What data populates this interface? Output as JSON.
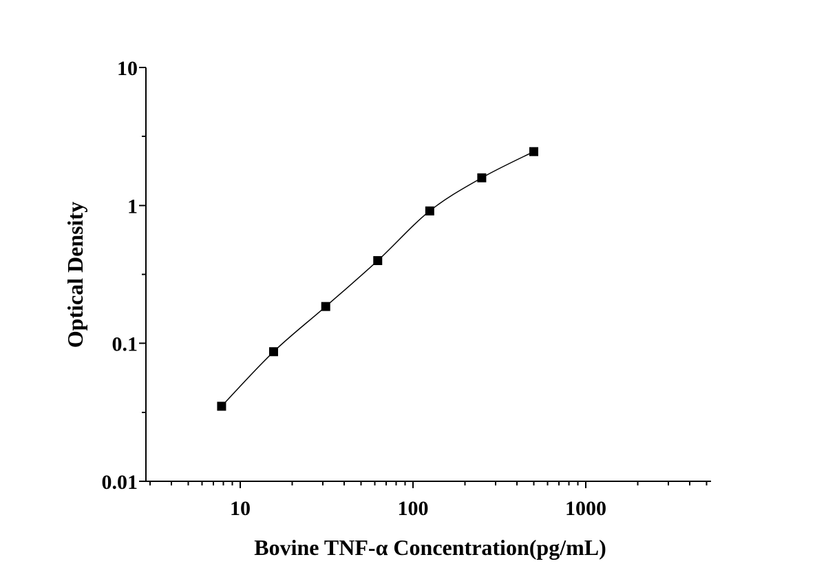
{
  "chart_data": {
    "type": "line",
    "xlabel": "Bovine TNF-α Concentration(pg/mL)",
    "ylabel": "Optical Density",
    "xscale": "log",
    "yscale": "log",
    "xlim": [
      3,
      5000
    ],
    "ylim": [
      0.01,
      10
    ],
    "x_tick_labels": [
      "10",
      "100",
      "1000"
    ],
    "y_tick_labels": [
      "0.01",
      "0.1",
      "1",
      "10"
    ],
    "grid": false,
    "legend": "none",
    "marker": "filled-square",
    "series": [
      {
        "x": [
          7.8,
          15.6,
          31.25,
          62.5,
          125,
          250,
          500
        ],
        "values": [
          0.035,
          0.087,
          0.185,
          0.398,
          0.912,
          1.585,
          2.455
        ]
      }
    ]
  },
  "colors": {
    "axis": "#000000",
    "series": "#000000",
    "background": "#ffffff"
  }
}
